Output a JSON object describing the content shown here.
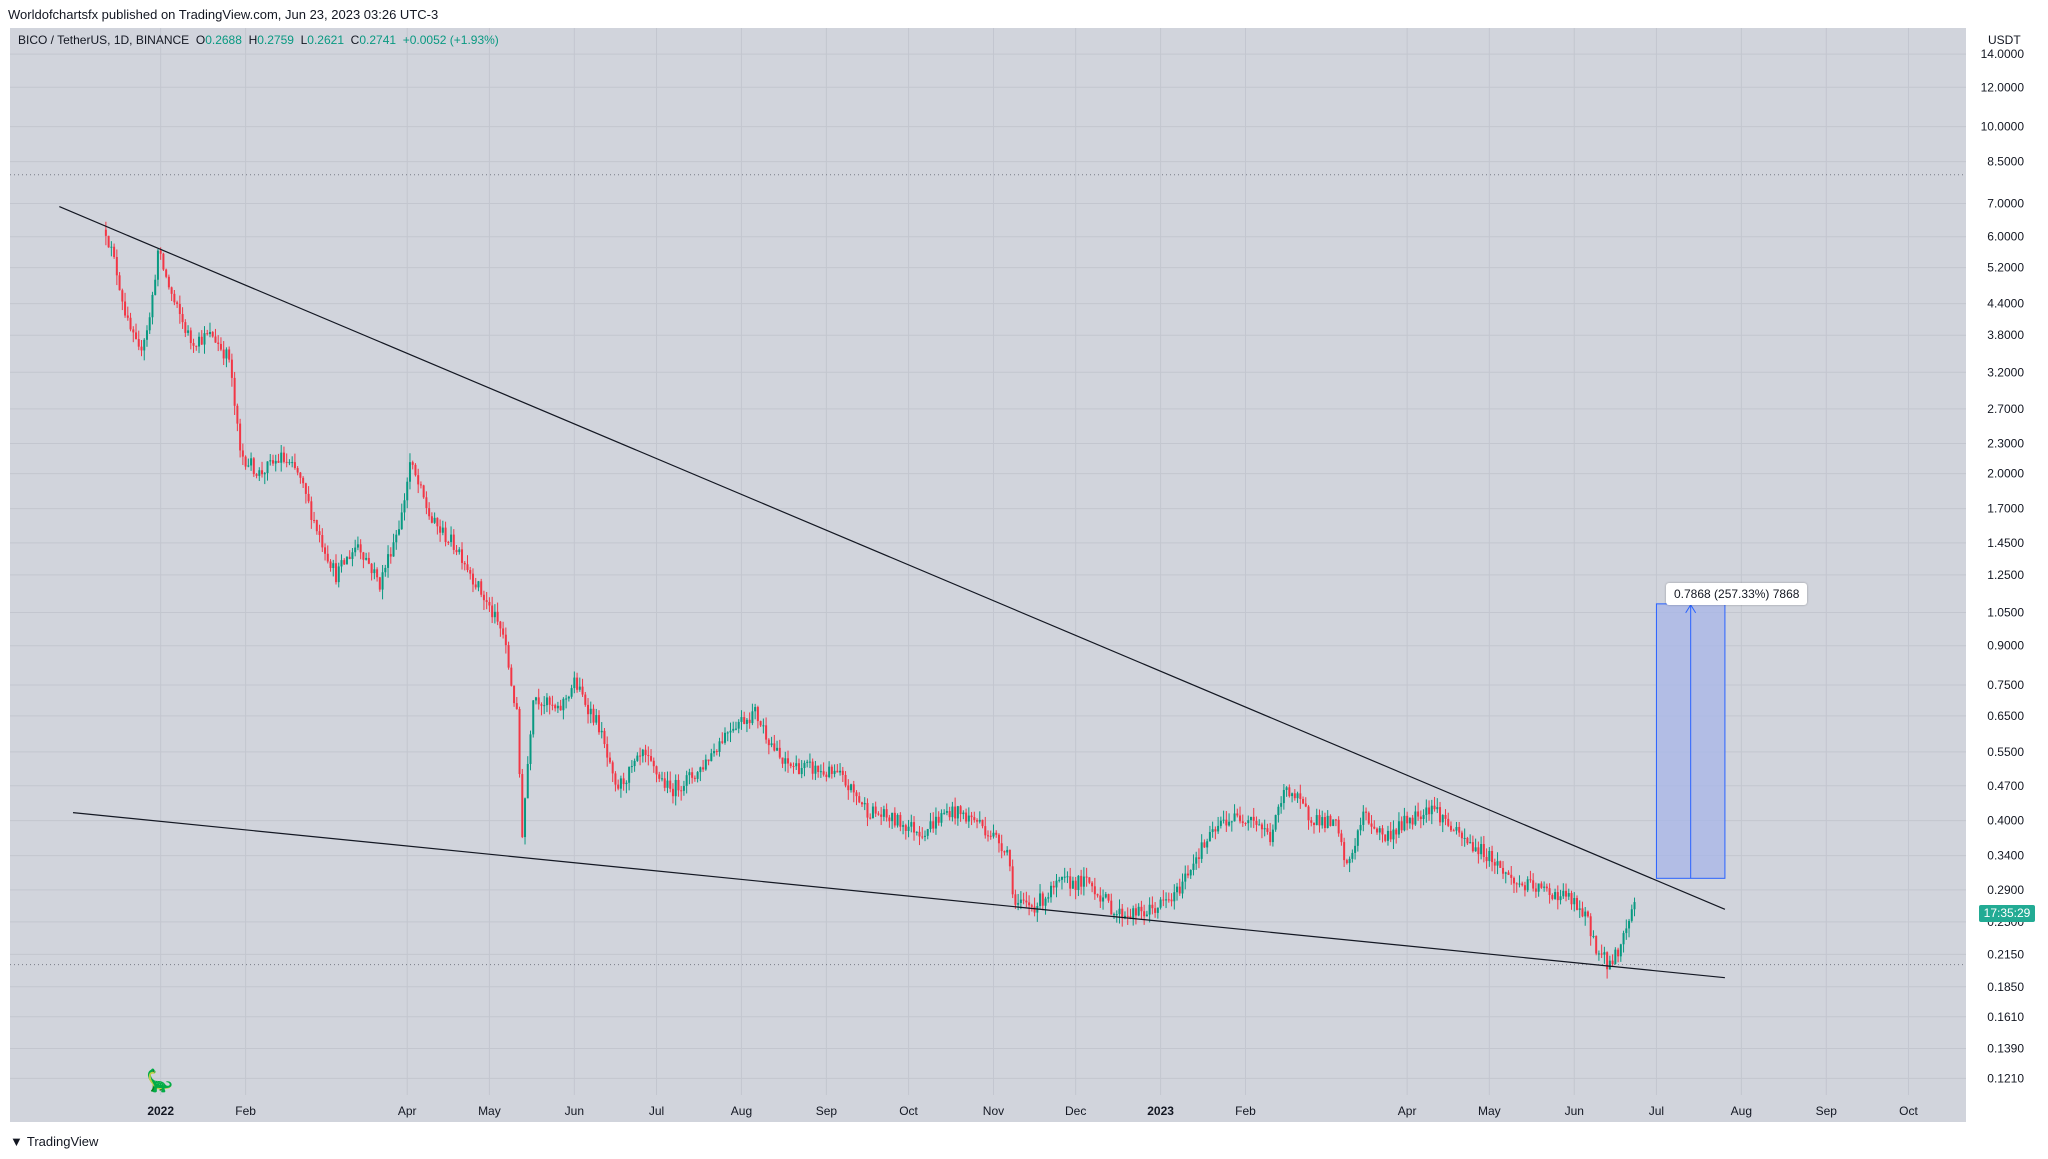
{
  "header": {
    "published": "Worldofchartsfx published on TradingView.com, Jun 23, 2023 03:26 UTC-3"
  },
  "legend": {
    "symbol": "BICO / TetherUS, 1D, BINANCE",
    "o_label": "O",
    "o": "0.2688",
    "h_label": "H",
    "h": "0.2759",
    "l_label": "L",
    "l": "0.2621",
    "c_label": "C",
    "c": "0.2741",
    "change": "+0.0052 (+1.93%)"
  },
  "price_axis": {
    "currency": "USDT",
    "countdown": "17:35:29"
  },
  "measure": {
    "label": "0.7868 (257.33%) 7868"
  },
  "footer": {
    "brand": "TradingView",
    "brand_icon": "tradingview-logo-icon"
  },
  "colors": {
    "up": "#089981",
    "down": "#f23645",
    "measure_fill": "#a7b6e8",
    "measure_line": "#2962ff",
    "trendline": "#131722"
  },
  "chart_data": {
    "type": "candlestick",
    "title": "BICO / TetherUS, 1D, BINANCE",
    "y_scale": "log",
    "y_ticks": [
      14.0,
      12.0,
      10.0,
      8.5,
      7.0,
      6.0,
      5.2,
      4.4,
      3.8,
      3.2,
      2.7,
      2.3,
      2.0,
      1.7,
      1.45,
      1.25,
      1.05,
      0.9,
      0.75,
      0.65,
      0.55,
      0.47,
      0.4,
      0.34,
      0.29,
      0.25,
      0.215,
      0.185,
      0.161,
      0.139,
      0.121
    ],
    "y_tick_labels": [
      "14.0000",
      "12.0000",
      "10.0000",
      "8.5000",
      "7.0000",
      "6.0000",
      "5.2000",
      "4.4000",
      "3.8000",
      "3.2000",
      "2.7000",
      "2.3000",
      "2.0000",
      "1.7000",
      "1.4500",
      "1.2500",
      "1.0500",
      "0.9000",
      "0.7500",
      "0.6500",
      "0.5500",
      "0.4700",
      "0.4000",
      "0.3400",
      "0.2900",
      "0.2500",
      "0.2150",
      "0.1850",
      "0.1610",
      "0.1390",
      "0.1210"
    ],
    "x_ticks": [
      "2022-01-01",
      "2022-02-01",
      "2022-04-01",
      "2022-05-01",
      "2022-06-01",
      "2022-07-01",
      "2022-08-01",
      "2022-09-01",
      "2022-10-01",
      "2022-11-01",
      "2022-12-01",
      "2023-01-01",
      "2023-02-01",
      "2023-04-01",
      "2023-05-01",
      "2023-06-01",
      "2023-07-01",
      "2023-08-01",
      "2023-09-01",
      "2023-10-01"
    ],
    "x_tick_labels": [
      "2022",
      "Feb",
      "Apr",
      "May",
      "Jun",
      "Jul",
      "Aug",
      "Sep",
      "Oct",
      "Nov",
      "Dec",
      "2023",
      "Feb",
      "Apr",
      "May",
      "Jun",
      "Jul",
      "Aug",
      "Sep",
      "Oct"
    ],
    "x_range": [
      "2021-11-07",
      "2023-10-22"
    ],
    "y_range": [
      0.112,
      15.8
    ],
    "price_path": [
      [
        "2021-12-12",
        6.2
      ],
      [
        "2021-12-16",
        5.1
      ],
      [
        "2021-12-20",
        4.0
      ],
      [
        "2021-12-24",
        3.5
      ],
      [
        "2021-12-28",
        4.1
      ],
      [
        "2021-12-31",
        5.6
      ],
      [
        "2022-01-06",
        4.4
      ],
      [
        "2022-01-12",
        3.7
      ],
      [
        "2022-01-20",
        3.8
      ],
      [
        "2022-01-26",
        3.4
      ],
      [
        "2022-01-30",
        2.2
      ],
      [
        "2022-02-06",
        2.0
      ],
      [
        "2022-02-14",
        2.15
      ],
      [
        "2022-02-20",
        2.0
      ],
      [
        "2022-02-28",
        1.5
      ],
      [
        "2022-03-06",
        1.25
      ],
      [
        "2022-03-14",
        1.45
      ],
      [
        "2022-03-22",
        1.2
      ],
      [
        "2022-03-30",
        1.65
      ],
      [
        "2022-04-02",
        2.1
      ],
      [
        "2022-04-10",
        1.6
      ],
      [
        "2022-04-20",
        1.4
      ],
      [
        "2022-04-28",
        1.15
      ],
      [
        "2022-05-06",
        0.95
      ],
      [
        "2022-05-11",
        0.65
      ],
      [
        "2022-05-13",
        0.38
      ],
      [
        "2022-05-17",
        0.72
      ],
      [
        "2022-05-26",
        0.66
      ],
      [
        "2022-06-01",
        0.76
      ],
      [
        "2022-06-10",
        0.62
      ],
      [
        "2022-06-16",
        0.46
      ],
      [
        "2022-06-26",
        0.54
      ],
      [
        "2022-07-06",
        0.46
      ],
      [
        "2022-07-16",
        0.5
      ],
      [
        "2022-07-28",
        0.62
      ],
      [
        "2022-08-06",
        0.66
      ],
      [
        "2022-08-16",
        0.52
      ],
      [
        "2022-08-26",
        0.51
      ],
      [
        "2022-09-06",
        0.49
      ],
      [
        "2022-09-16",
        0.42
      ],
      [
        "2022-09-26",
        0.4
      ],
      [
        "2022-10-06",
        0.38
      ],
      [
        "2022-10-16",
        0.42
      ],
      [
        "2022-10-26",
        0.4
      ],
      [
        "2022-11-06",
        0.35
      ],
      [
        "2022-11-09",
        0.27
      ],
      [
        "2022-11-16",
        0.27
      ],
      [
        "2022-11-26",
        0.3
      ],
      [
        "2022-12-06",
        0.3
      ],
      [
        "2022-12-16",
        0.26
      ],
      [
        "2022-12-26",
        0.26
      ],
      [
        "2023-01-06",
        0.28
      ],
      [
        "2023-01-14",
        0.34
      ],
      [
        "2023-01-24",
        0.4
      ],
      [
        "2023-02-03",
        0.41
      ],
      [
        "2023-02-10",
        0.37
      ],
      [
        "2023-02-16",
        0.47
      ],
      [
        "2023-02-24",
        0.41
      ],
      [
        "2023-03-06",
        0.39
      ],
      [
        "2023-03-10",
        0.32
      ],
      [
        "2023-03-16",
        0.41
      ],
      [
        "2023-03-24",
        0.37
      ],
      [
        "2023-04-01",
        0.4
      ],
      [
        "2023-04-10",
        0.43
      ],
      [
        "2023-04-20",
        0.37
      ],
      [
        "2023-05-01",
        0.34
      ],
      [
        "2023-05-10",
        0.3
      ],
      [
        "2023-05-20",
        0.29
      ],
      [
        "2023-05-30",
        0.28
      ],
      [
        "2023-06-06",
        0.25
      ],
      [
        "2023-06-10",
        0.215
      ],
      [
        "2023-06-14",
        0.205
      ],
      [
        "2023-06-18",
        0.225
      ],
      [
        "2023-06-23",
        0.2741
      ]
    ],
    "trendlines": [
      {
        "name": "upper",
        "start": [
          "2021-11-25",
          6.9
        ],
        "end": [
          "2023-07-26",
          0.265
        ]
      },
      {
        "name": "lower",
        "start": [
          "2021-11-30",
          0.415
        ],
        "end": [
          "2023-07-26",
          0.193
        ]
      }
    ],
    "horizontal_lines": [
      8.0,
      0.205
    ],
    "measure_range": {
      "x_start": "2023-07-01",
      "x_end": "2023-07-26",
      "y_low": 0.306,
      "y_high": 1.093
    }
  }
}
